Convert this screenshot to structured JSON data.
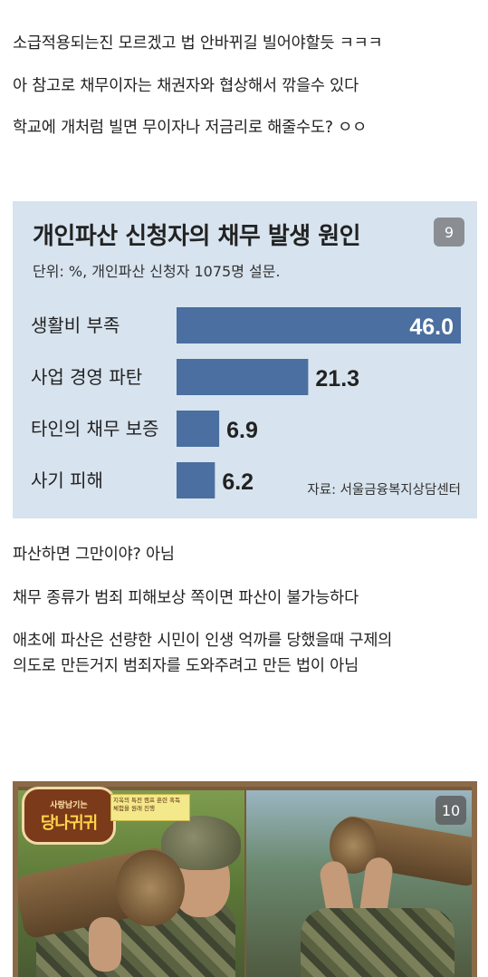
{
  "post": {
    "lines_top": [
      "소급적용되는진 모르겠고 법 안바뀌길 빌어야할듯 ㅋㅋㅋ",
      "아 참고로 채무이자는 채권자와 협상해서 깎을수 있다",
      "학교에 개처럼 빌면 무이자나 저금리로 해줄수도? ㅇㅇ"
    ],
    "lines_bottom": [
      "파산하면 그만이야? 아님",
      "채무 종류가 범죄 피해보상 쪽이면 파산이 불가능하다",
      "애초에 파산은 선량한 시민이 인생 억까를 당했을때 구제의",
      "의도로 만든거지 범죄자를 도와주려고 만든 법이 아님"
    ]
  },
  "infographic": {
    "badge": "9",
    "source": "자료: 서울금융복지상담센터",
    "bar_color": "#4a6fa0"
  },
  "chart_data": {
    "type": "bar",
    "orientation": "horizontal",
    "title": "개인파산 신청자의 채무 발생 원인",
    "subtitle": "단위: %, 개인파산 신청자 1075명 설문.",
    "categories": [
      "생활비 부족",
      "사업 경영 파탄",
      "타인의 채무 보증",
      "사기 피해"
    ],
    "values": [
      46.0,
      21.3,
      6.9,
      6.2
    ],
    "value_labels": [
      "46.0",
      "21.3",
      "6.9",
      "6.2"
    ],
    "xlim": [
      0,
      46.0
    ],
    "grid": false,
    "legend": "none"
  },
  "image2": {
    "badge": "10",
    "logo_small": "사랑남기는",
    "logo_main": "당나귀귀",
    "caption": "지옥의 특전 캠프 훈련 혹독 체험을 원래 진행"
  }
}
